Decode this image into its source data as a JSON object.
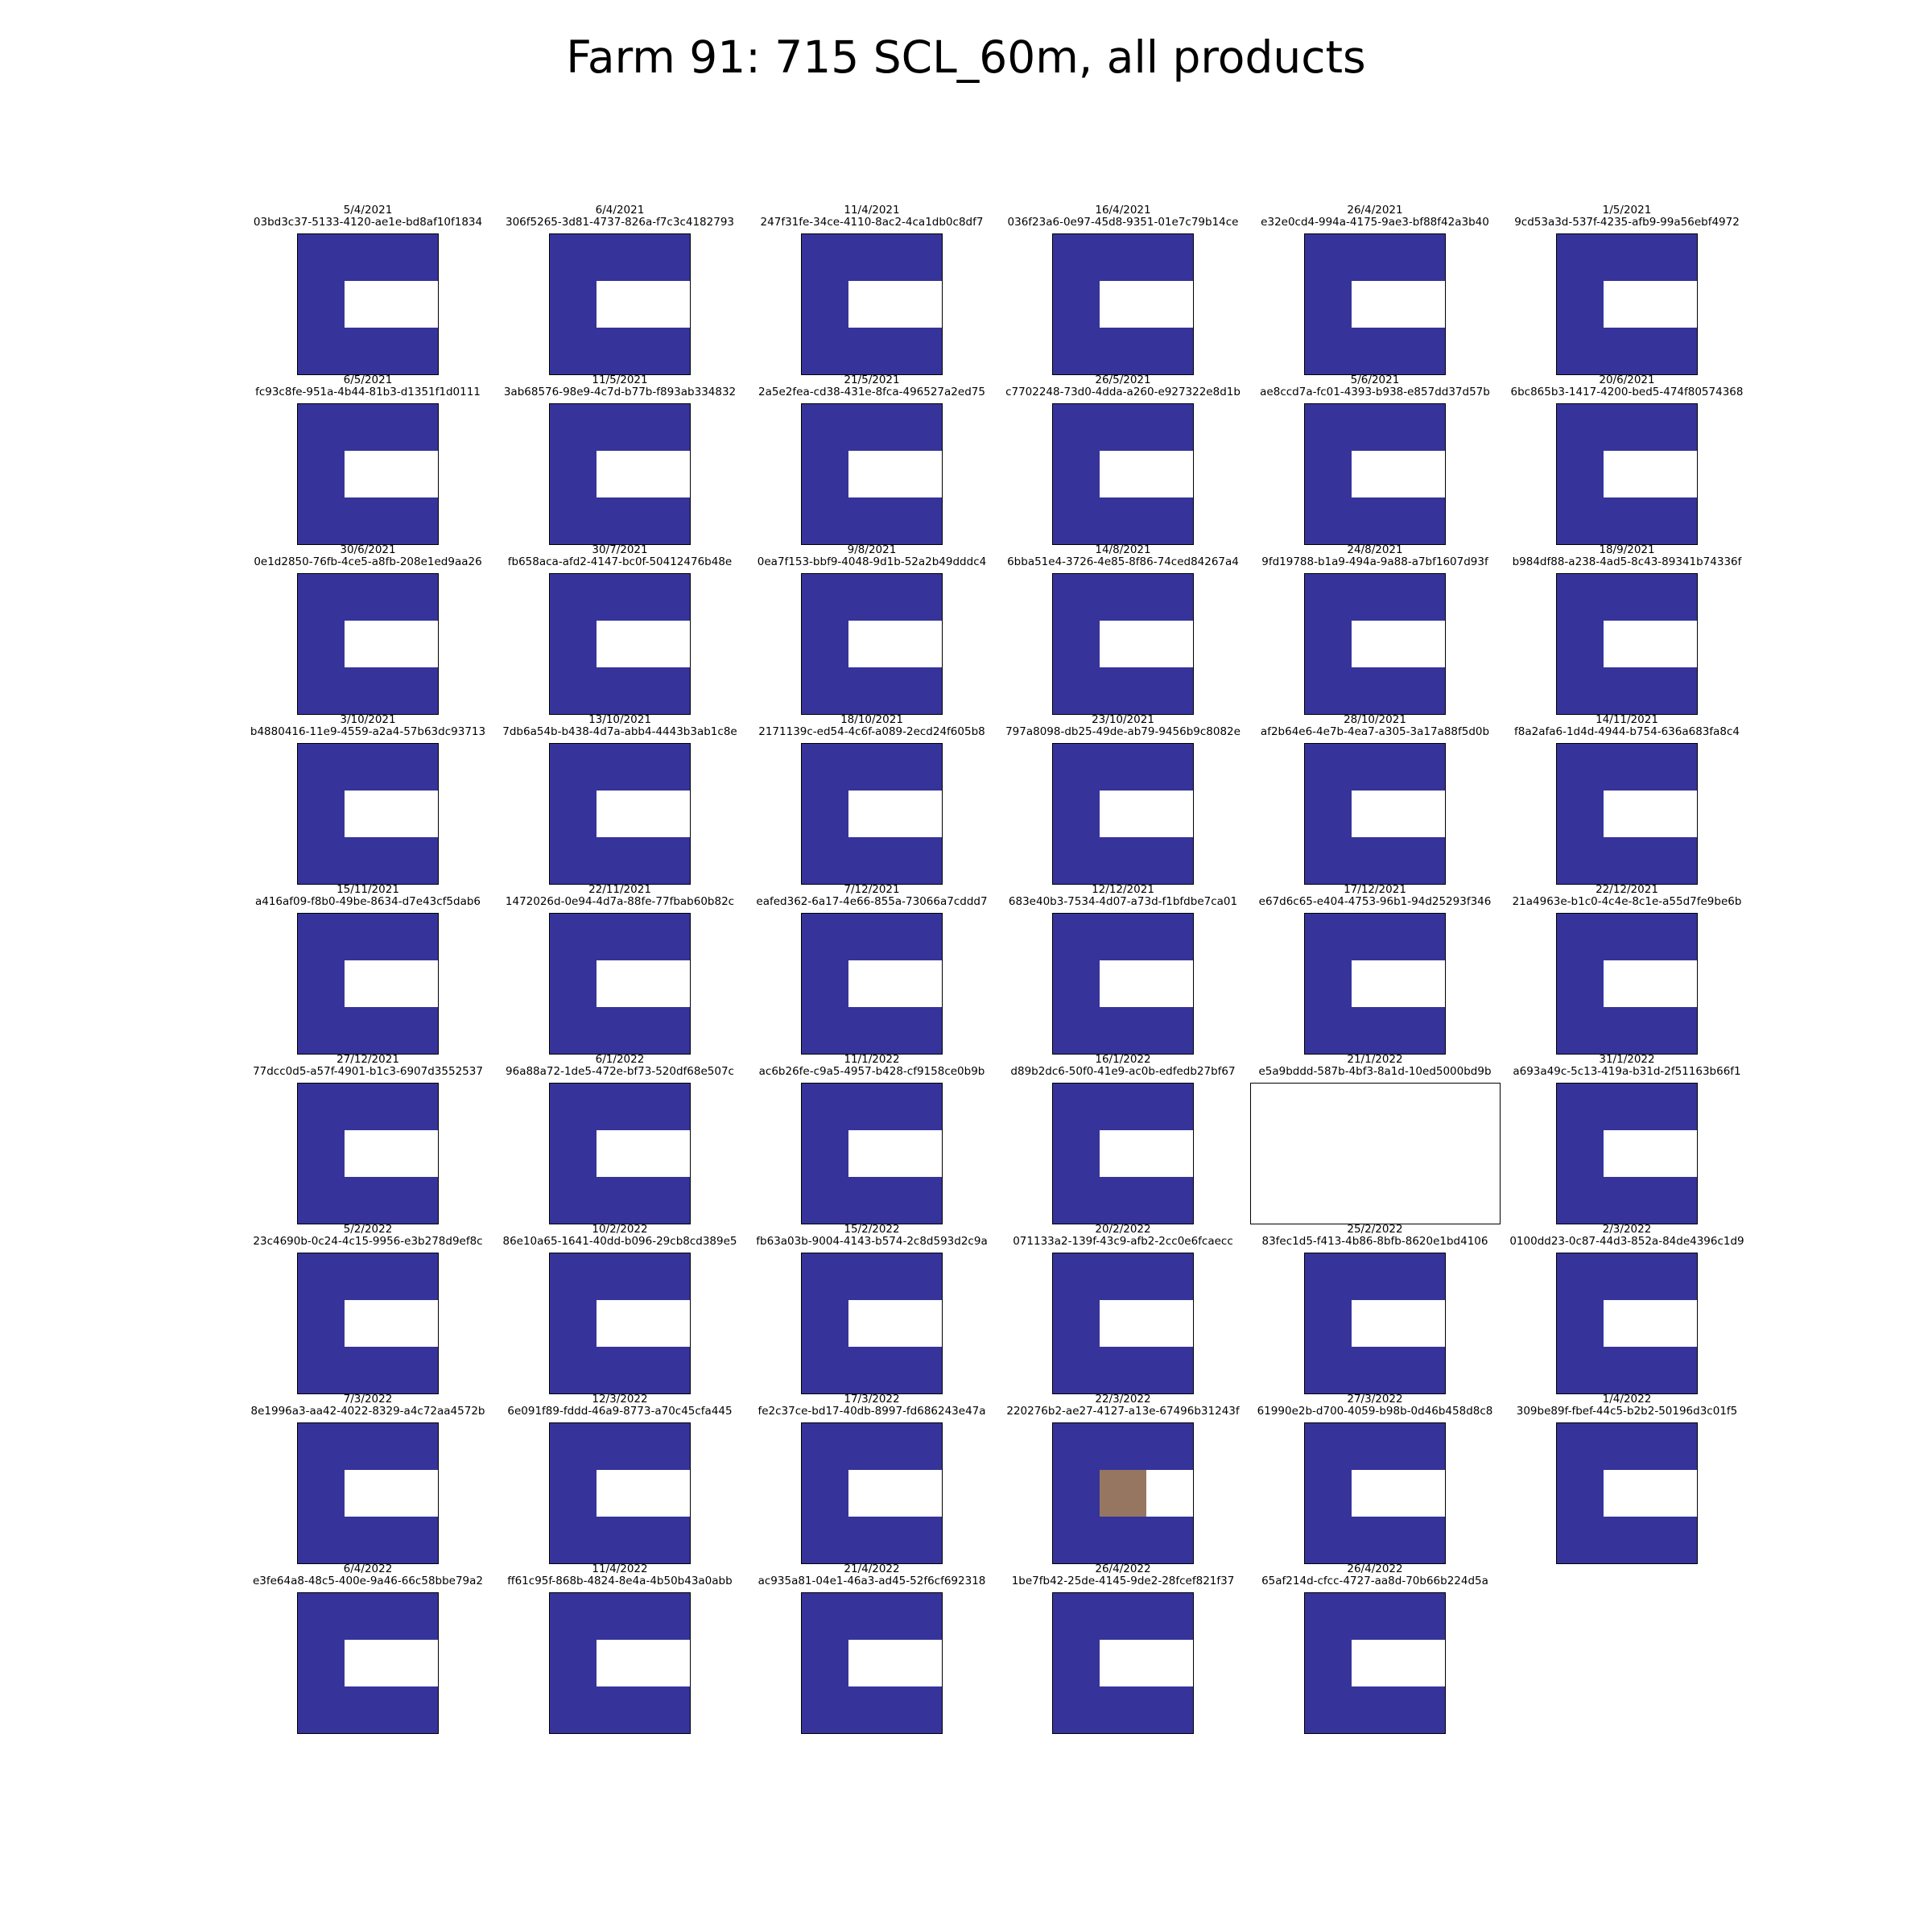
{
  "title": "Farm 91: 715 SCL_60m, all products",
  "colors": {
    "scl_dark": "#36349a",
    "scl_white": "#ffffff",
    "scl_brown": "#967661"
  },
  "chart_data": {
    "type": "image-grid",
    "title": "Farm 91: 715 SCL_60m, all products",
    "panels": [
      {
        "date": "5/4/2021",
        "id": "03bd3c37-5133-4120-ae1e-bd8af10f1834",
        "pattern": "standard"
      },
      {
        "date": "6/4/2021",
        "id": "306f5265-3d81-4737-826a-f7c3c4182793",
        "pattern": "standard"
      },
      {
        "date": "11/4/2021",
        "id": "247f31fe-34ce-4110-8ac2-4ca1db0c8df7",
        "pattern": "standard"
      },
      {
        "date": "16/4/2021",
        "id": "036f23a6-0e97-45d8-9351-01e7c79b14ce",
        "pattern": "standard"
      },
      {
        "date": "26/4/2021",
        "id": "e32e0cd4-994a-4175-9ae3-bf88f42a3b40",
        "pattern": "standard"
      },
      {
        "date": "1/5/2021",
        "id": "9cd53a3d-537f-4235-afb9-99a56ebf4972",
        "pattern": "standard"
      },
      {
        "date": "6/5/2021",
        "id": "fc93c8fe-951a-4b44-81b3-d1351f1d0111",
        "pattern": "standard"
      },
      {
        "date": "11/5/2021",
        "id": "3ab68576-98e9-4c7d-b77b-f893ab334832",
        "pattern": "standard"
      },
      {
        "date": "21/5/2021",
        "id": "2a5e2fea-cd38-431e-8fca-496527a2ed75",
        "pattern": "standard"
      },
      {
        "date": "26/5/2021",
        "id": "c7702248-73d0-4dda-a260-e927322e8d1b",
        "pattern": "standard"
      },
      {
        "date": "5/6/2021",
        "id": "ae8ccd7a-fc01-4393-b938-e857dd37d57b",
        "pattern": "standard"
      },
      {
        "date": "20/6/2021",
        "id": "6bc865b3-1417-4200-bed5-474f80574368",
        "pattern": "standard"
      },
      {
        "date": "30/6/2021",
        "id": "0e1d2850-76fb-4ce5-a8fb-208e1ed9aa26",
        "pattern": "standard"
      },
      {
        "date": "30/7/2021",
        "id": "fb658aca-afd2-4147-bc0f-50412476b48e",
        "pattern": "standard"
      },
      {
        "date": "9/8/2021",
        "id": "0ea7f153-bbf9-4048-9d1b-52a2b49dddc4",
        "pattern": "standard"
      },
      {
        "date": "14/8/2021",
        "id": "6bba51e4-3726-4e85-8f86-74ced84267a4",
        "pattern": "standard"
      },
      {
        "date": "24/8/2021",
        "id": "9fd19788-b1a9-494a-9a88-a7bf1607d93f",
        "pattern": "standard"
      },
      {
        "date": "18/9/2021",
        "id": "b984df88-a238-4ad5-8c43-89341b74336f",
        "pattern": "standard"
      },
      {
        "date": "3/10/2021",
        "id": "b4880416-11e9-4559-a2a4-57b63dc93713",
        "pattern": "standard"
      },
      {
        "date": "13/10/2021",
        "id": "7db6a54b-b438-4d7a-abb4-4443b3ab1c8e",
        "pattern": "standard"
      },
      {
        "date": "18/10/2021",
        "id": "2171139c-ed54-4c6f-a089-2ecd24f605b8",
        "pattern": "standard"
      },
      {
        "date": "23/10/2021",
        "id": "797a8098-db25-49de-ab79-9456b9c8082e",
        "pattern": "standard"
      },
      {
        "date": "28/10/2021",
        "id": "af2b64e6-4e7b-4ea7-a305-3a17a88f5d0b",
        "pattern": "standard"
      },
      {
        "date": "14/11/2021",
        "id": "f8a2afa6-1d4d-4944-b754-636a683fa8c4",
        "pattern": "standard"
      },
      {
        "date": "15/11/2021",
        "id": "a416af09-f8b0-49be-8634-d7e43cf5dab6",
        "pattern": "standard"
      },
      {
        "date": "22/11/2021",
        "id": "1472026d-0e94-4d7a-88fe-77fbab60b82c",
        "pattern": "standard"
      },
      {
        "date": "7/12/2021",
        "id": "eafed362-6a17-4e66-855a-73066a7cddd7",
        "pattern": "standard"
      },
      {
        "date": "12/12/2021",
        "id": "683e40b3-7534-4d07-a73d-f1bfdbe7ca01",
        "pattern": "standard"
      },
      {
        "date": "17/12/2021",
        "id": "e67d6c65-e404-4753-96b1-94d25293f346",
        "pattern": "standard"
      },
      {
        "date": "22/12/2021",
        "id": "21a4963e-b1c0-4c4e-8c1e-a55d7fe9be6b",
        "pattern": "standard"
      },
      {
        "date": "27/12/2021",
        "id": "77dcc0d5-a57f-4901-b1c3-6907d3552537",
        "pattern": "standard"
      },
      {
        "date": "6/1/2022",
        "id": "96a88a72-1de5-472e-bf73-520df68e507c",
        "pattern": "standard"
      },
      {
        "date": "11/1/2022",
        "id": "ac6b26fe-c9a5-4957-b428-cf9158ce0b9b",
        "pattern": "standard"
      },
      {
        "date": "16/1/2022",
        "id": "d89b2dc6-50f0-41e9-ac0b-edfedb27bf67",
        "pattern": "standard"
      },
      {
        "date": "21/1/2022",
        "id": "e5a9bddd-587b-4bf3-8a1d-10ed5000bd9b",
        "pattern": "blank"
      },
      {
        "date": "31/1/2022",
        "id": "a693a49c-5c13-419a-b31d-2f51163b66f1",
        "pattern": "standard"
      },
      {
        "date": "5/2/2022",
        "id": "23c4690b-0c24-4c15-9956-e3b278d9ef8c",
        "pattern": "standard"
      },
      {
        "date": "10/2/2022",
        "id": "86e10a65-1641-40dd-b096-29cb8cd389e5",
        "pattern": "standard"
      },
      {
        "date": "15/2/2022",
        "id": "fb63a03b-9004-4143-b574-2c8d593d2c9a",
        "pattern": "standard"
      },
      {
        "date": "20/2/2022",
        "id": "071133a2-139f-43c9-afb2-2cc0e6fcaecc",
        "pattern": "standard"
      },
      {
        "date": "25/2/2022",
        "id": "83fec1d5-f413-4b86-8bfb-8620e1bd4106",
        "pattern": "standard"
      },
      {
        "date": "2/3/2022",
        "id": "0100dd23-0c87-44d3-852a-84de4396c1d9",
        "pattern": "standard"
      },
      {
        "date": "7/3/2022",
        "id": "8e1996a3-aa42-4022-8329-a4c72aa4572b",
        "pattern": "standard"
      },
      {
        "date": "12/3/2022",
        "id": "6e091f89-fddd-46a9-8773-a70c45cfa445",
        "pattern": "standard"
      },
      {
        "date": "17/3/2022",
        "id": "fe2c37ce-bd17-40db-8997-fd686243e47a",
        "pattern": "standard"
      },
      {
        "date": "22/3/2022",
        "id": "220276b2-ae27-4127-a13e-67496b31243f",
        "pattern": "brown"
      },
      {
        "date": "27/3/2022",
        "id": "61990e2b-d700-4059-b98b-0d46b458d8c8",
        "pattern": "standard"
      },
      {
        "date": "1/4/2022",
        "id": "309be89f-fbef-44c5-b2b2-50196d3c01f5",
        "pattern": "standard"
      },
      {
        "date": "6/4/2022",
        "id": "e3fe64a8-48c5-400e-9a46-66c58bbe79a2",
        "pattern": "standard"
      },
      {
        "date": "11/4/2022",
        "id": "ff61c95f-868b-4824-8e4a-4b50b43a0abb",
        "pattern": "standard"
      },
      {
        "date": "21/4/2022",
        "id": "ac935a81-04e1-46a3-ad45-52f6cf692318",
        "pattern": "standard"
      },
      {
        "date": "26/4/2022",
        "id": "1be7fb42-25de-4145-9de2-28fcef821f37",
        "pattern": "standard"
      },
      {
        "date": "26/4/2022",
        "id": "65af214d-cfcc-4727-aa8d-70b66b224d5a",
        "pattern": "standard"
      }
    ]
  }
}
